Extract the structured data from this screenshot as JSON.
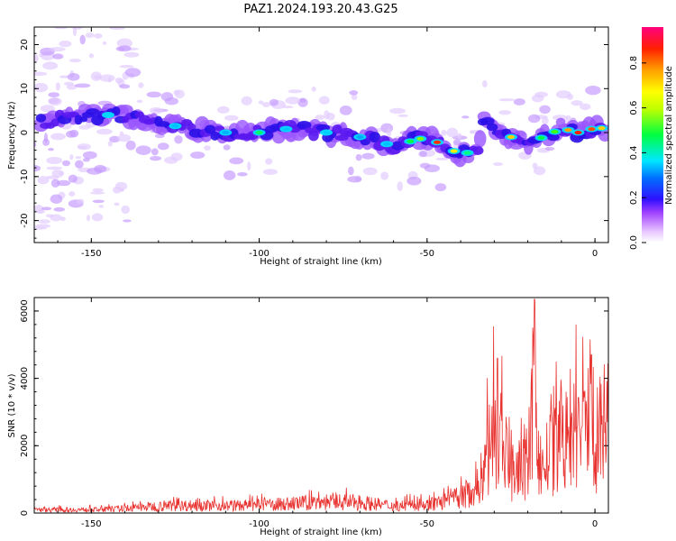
{
  "title": "PAZ1.2024.193.20.43.G25",
  "chart_data": [
    {
      "type": "heatmap",
      "xlabel": "Height of straight line (km)",
      "ylabel": "Frequency (Hz)",
      "xlim": [
        -167,
        4
      ],
      "ylim": [
        -25,
        24
      ],
      "xticks": [
        -150,
        -100,
        -50,
        0
      ],
      "yticks": [
        -20,
        -10,
        0,
        10,
        20
      ],
      "colorbar": {
        "label": "Normalized spectral amplitude",
        "range": [
          0,
          0.96
        ],
        "ticks": [
          0.0,
          0.2,
          0.4,
          0.6,
          0.8
        ],
        "colormap": "rainbow (white-violet-blue-cyan-green-yellow-orange-red-magenta)"
      },
      "ridge": {
        "description": "dominant frequency ridge vs height",
        "x": [
          -167,
          -150,
          -140,
          -130,
          -120,
          -110,
          -100,
          -90,
          -80,
          -70,
          -60,
          -55,
          -50,
          -45,
          -40,
          -35,
          -33,
          -30,
          -25,
          -20,
          -15,
          -10,
          -5,
          0,
          4
        ],
        "y": [
          2,
          4,
          4,
          2,
          1,
          0,
          0,
          1,
          0,
          -1,
          -3,
          -2,
          -1,
          -3,
          -5,
          -4,
          4,
          0,
          -1,
          -2,
          -1,
          1,
          0,
          1,
          1
        ]
      }
    },
    {
      "type": "line",
      "xlabel": "Height of straight line (km)",
      "ylabel": "SNR (10 * v/v)",
      "xlim": [
        -167,
        4
      ],
      "ylim": [
        0,
        6400
      ],
      "xticks": [
        -150,
        -100,
        -50,
        0
      ],
      "yticks": [
        0,
        2000,
        4000,
        6000
      ],
      "color": "#e8322f",
      "envelope": {
        "x": [
          -167,
          -150,
          -140,
          -130,
          -120,
          -110,
          -100,
          -90,
          -80,
          -70,
          -60,
          -50,
          -45,
          -40,
          -35,
          -32,
          -30,
          -28,
          -25,
          -22,
          -20,
          -18,
          -16,
          -14,
          -10,
          -5,
          -2,
          0,
          4
        ],
        "y": [
          150,
          150,
          200,
          320,
          350,
          330,
          360,
          430,
          520,
          480,
          330,
          380,
          520,
          720,
          1150,
          2600,
          3800,
          3100,
          2200,
          1800,
          2300,
          5200,
          1900,
          2500,
          3100,
          3600,
          4000,
          3700,
          4000
        ]
      },
      "peaks": [
        {
          "x": -18,
          "y": 6350
        },
        {
          "x": -29,
          "y": 4600
        },
        {
          "x": -1,
          "y": 4700
        }
      ]
    }
  ]
}
